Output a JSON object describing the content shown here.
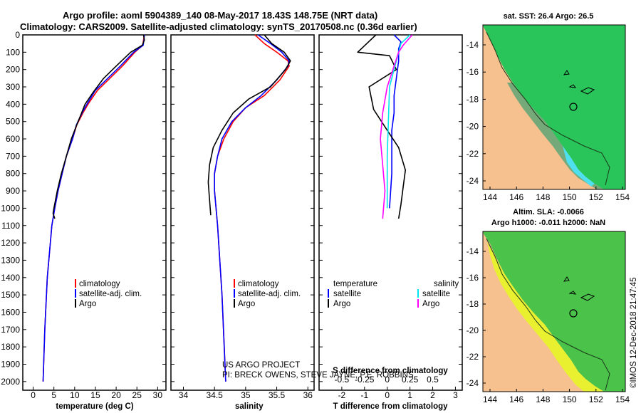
{
  "header": {
    "line1": "Argo profile: aoml 5904389_140 08-May-2017 18.43S 148.75E (NRT data)",
    "line2": "Climatology: CARS2009. Satellite-adjusted climatology: synTS_20170508.nc (0.36d earlier)"
  },
  "colors": {
    "climatology": "#ff0000",
    "satellite": "#0000ff",
    "argo": "#000000",
    "satellite_sal": "#00e5ee",
    "argo_sal_diff": "#ff00ff",
    "land": "#f7c08f"
  },
  "depth_ticks": [
    "0",
    "100",
    "200",
    "300",
    "400",
    "500",
    "600",
    "700",
    "800",
    "900",
    "1000",
    "1100",
    "1200",
    "1300",
    "1400",
    "1500",
    "1600",
    "1700",
    "1800",
    "1900",
    "2000"
  ],
  "chart_data": [
    {
      "type": "line",
      "name": "temperature",
      "xlabel": "temperature (deg C)",
      "xlim": [
        -2.5,
        32
      ],
      "ylim": [
        2050,
        0
      ],
      "x_ticks": [
        "0",
        "5",
        "10",
        "15",
        "20",
        "25",
        "30"
      ],
      "x_tick_values": [
        0,
        5,
        10,
        15,
        20,
        25,
        30
      ],
      "series": [
        {
          "name": "climatology",
          "color": "#ff0000",
          "x": [
            26.8,
            26.6,
            26.4,
            24.5,
            21.5,
            18.5,
            15.5,
            13.5,
            12,
            10.5,
            9.5,
            8,
            7,
            6,
            5.2,
            4.5,
            3.4,
            2.8,
            2.4
          ],
          "y": [
            0,
            30,
            60,
            100,
            180,
            250,
            320,
            390,
            450,
            520,
            600,
            700,
            800,
            900,
            1000,
            1100,
            1400,
            1700,
            2000
          ]
        },
        {
          "name": "satellite",
          "color": "#0000ff",
          "x": [
            26.8,
            26.7,
            26.5,
            24.2,
            21,
            18,
            15,
            13.2,
            11.8,
            10.4,
            9.5,
            8,
            7,
            6,
            5.2,
            4.5,
            3.4,
            2.8,
            2.4
          ],
          "y": [
            0,
            30,
            60,
            100,
            180,
            250,
            320,
            390,
            450,
            520,
            600,
            700,
            800,
            900,
            1000,
            1100,
            1400,
            1700,
            2000
          ]
        },
        {
          "name": "Argo",
          "color": "#000000",
          "x": [
            26.6,
            26.8,
            26.3,
            23.5,
            20,
            17,
            14.5,
            12.5,
            11.5,
            10.5,
            9.2,
            8,
            6.8,
            5.8,
            5,
            4.8,
            5.2
          ],
          "y": [
            0,
            30,
            60,
            100,
            180,
            250,
            330,
            400,
            460,
            520,
            600,
            700,
            800,
            900,
            1000,
            1030,
            1060
          ]
        }
      ],
      "legend": [
        "climatology",
        "satellite-adj. clim.",
        "Argo"
      ]
    },
    {
      "type": "line",
      "name": "salinity",
      "xlabel": "salinity",
      "xlim": [
        33.8,
        36.1
      ],
      "ylim": [
        2050,
        0
      ],
      "x_ticks": [
        "34",
        "34.5",
        "35",
        "35.5",
        "36"
      ],
      "x_tick_values": [
        34,
        34.5,
        35,
        35.5,
        36
      ],
      "series": [
        {
          "name": "climatology",
          "color": "#ff0000",
          "x": [
            35.15,
            35.3,
            35.5,
            35.68,
            35.7,
            35.55,
            35.3,
            35.0,
            34.8,
            34.65,
            34.55,
            34.5,
            34.5,
            34.55,
            34.62,
            34.68
          ],
          "y": [
            0,
            50,
            100,
            150,
            180,
            260,
            350,
            420,
            500,
            600,
            700,
            800,
            900,
            1100,
            1500,
            2000
          ]
        },
        {
          "name": "satellite",
          "color": "#0000ff",
          "x": [
            35.2,
            35.4,
            35.58,
            35.7,
            35.68,
            35.5,
            35.25,
            35.0,
            34.78,
            34.62,
            34.55,
            34.5,
            34.5,
            34.55,
            34.62,
            34.68
          ],
          "y": [
            0,
            50,
            100,
            150,
            180,
            260,
            350,
            420,
            500,
            600,
            700,
            800,
            900,
            1100,
            1500,
            2000
          ]
        },
        {
          "name": "Argo",
          "color": "#000000",
          "x": [
            35.3,
            35.42,
            35.62,
            35.72,
            35.64,
            35.4,
            35.05,
            34.8,
            34.62,
            34.48,
            34.42,
            34.4,
            34.42,
            34.44
          ],
          "y": [
            0,
            50,
            100,
            150,
            200,
            300,
            370,
            450,
            550,
            650,
            750,
            850,
            950,
            1040
          ]
        }
      ],
      "legend": [
        "climatology",
        "satellite-adj. clim.",
        "Argo"
      ],
      "credit": [
        "US ARGO PROJECT",
        "PI: BRECK OWENS, STEVE JAYNE, P.E. ROBBINS"
      ]
    },
    {
      "type": "line",
      "name": "difference from climatology",
      "xlabel": "T difference from climatology",
      "x2label": "S difference from climatology",
      "xlim": [
        -3,
        3.3
      ],
      "ylim": [
        2050,
        0
      ],
      "x_ticks": [
        "-2",
        "-1",
        "0",
        "1",
        "2",
        "3"
      ],
      "x_tick_values": [
        -2,
        -1,
        0,
        1,
        2,
        3
      ],
      "x2_ticks": [
        "-0.5",
        "-0.25",
        "0",
        "0.25",
        "0.5"
      ],
      "x2_tick_values": [
        -0.5,
        -0.25,
        0,
        0.25,
        0.5
      ],
      "x2_scale": 4,
      "series": [
        {
          "name": "T satellite",
          "color": "#0000ff",
          "x": [
            0.3,
            0.6,
            0.5,
            0.5,
            0.4,
            0.3,
            0.3,
            0.2,
            0.2,
            0.2,
            0.1
          ],
          "y": [
            0,
            40,
            80,
            150,
            250,
            350,
            450,
            550,
            650,
            800,
            1000
          ]
        },
        {
          "name": "T Argo",
          "color": "#000000",
          "x": [
            -0.5,
            -1.3,
            0.1,
            0.4,
            -0.8,
            -0.6,
            0.0,
            0.5,
            0.8,
            0.7,
            0.6,
            0.5
          ],
          "y": [
            0,
            100,
            120,
            200,
            300,
            430,
            550,
            650,
            780,
            880,
            980,
            1060
          ]
        },
        {
          "name": "S satellite",
          "color": "#00e5ee",
          "x": [
            1.0,
            0.6,
            0.5,
            0.3,
            0.1,
            0.05,
            0.0,
            0.0
          ],
          "y": [
            0,
            50,
            100,
            200,
            300,
            500,
            700,
            1000
          ]
        },
        {
          "name": "S Argo",
          "color": "#ff00ff",
          "x": [
            1.1,
            0.7,
            0.5,
            0.0,
            -0.2,
            -0.3,
            -0.2,
            -0.1,
            -0.2
          ],
          "y": [
            0,
            60,
            100,
            300,
            450,
            600,
            750,
            900,
            1060
          ]
        }
      ],
      "legend_titles": [
        "temperature",
        "salinity"
      ],
      "legend": [
        "satellite",
        "Argo",
        "satellite",
        "Argo"
      ]
    }
  ],
  "maps": {
    "sst": {
      "title": "sat. SST: 26.4 Argo: 26.5"
    },
    "sla": {
      "title1": "Altim. SLA: -0.0066",
      "title2": "Argo h1000: -0.011 h2000: NaN"
    },
    "lon_ticks": [
      "144",
      "146",
      "148",
      "150",
      "152",
      "154"
    ],
    "lat_ticks": [
      "-14",
      "-16",
      "-18",
      "-20",
      "-22",
      "-24"
    ]
  },
  "watermark": "©IMOS 12-Dec-2018 21:47:45"
}
